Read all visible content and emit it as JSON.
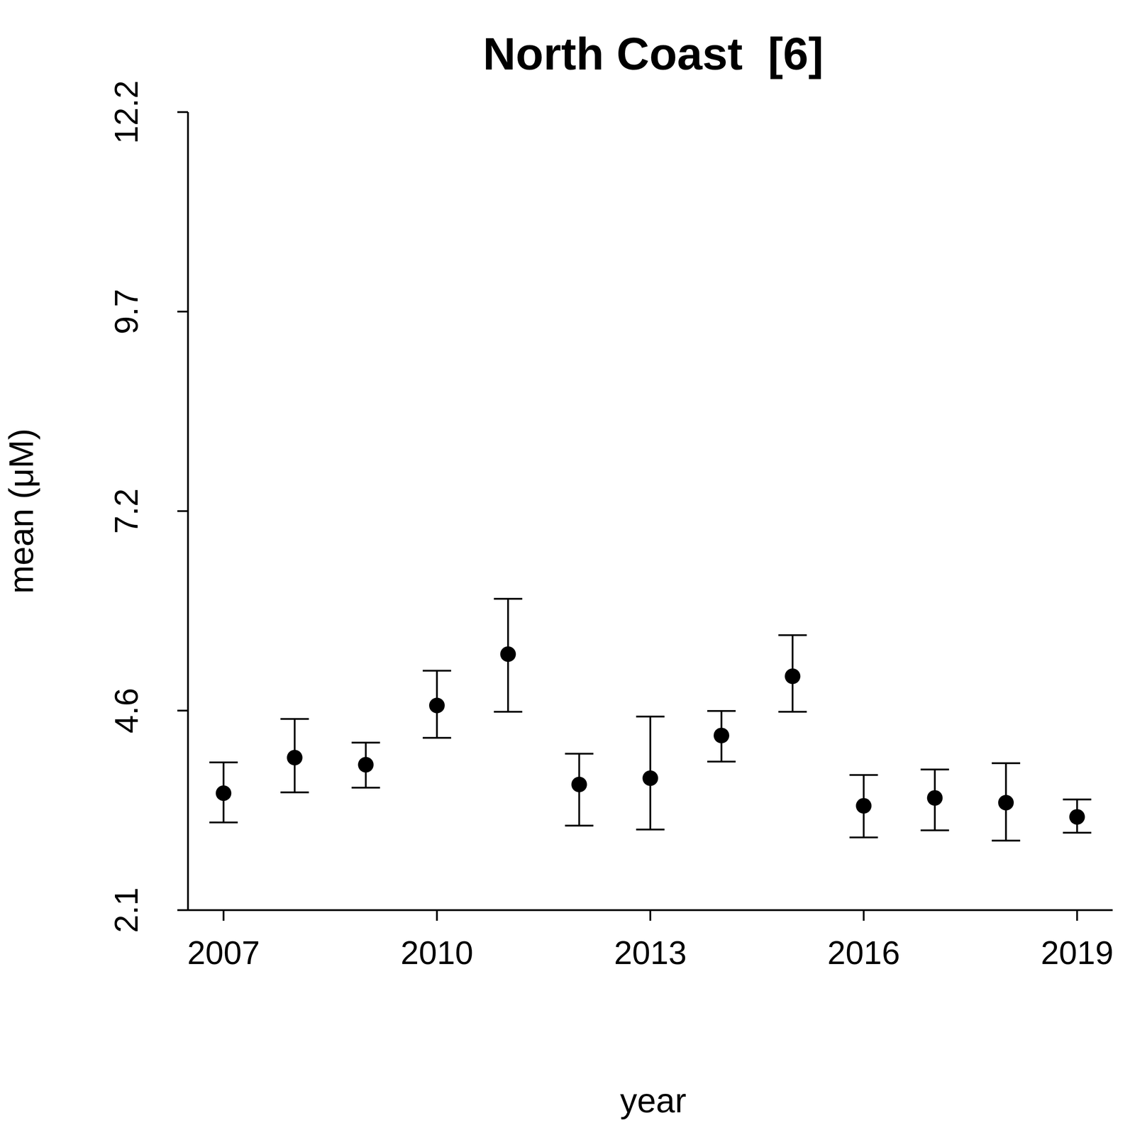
{
  "chart_data": {
    "type": "scatter",
    "title": "North Coast  [6]",
    "x_label": "year",
    "y_label": "mean (μM)",
    "x": [
      2007,
      2008,
      2009,
      2010,
      2011,
      2012,
      2013,
      2014,
      2015,
      2016,
      2017,
      2018,
      2019
    ],
    "values": [
      3.58,
      4.03,
      3.94,
      4.69,
      5.34,
      3.69,
      3.77,
      4.31,
      5.06,
      3.42,
      3.52,
      3.46,
      3.28
    ],
    "lower": [
      3.21,
      3.59,
      3.65,
      4.28,
      4.61,
      3.17,
      3.12,
      3.98,
      4.61,
      3.02,
      3.11,
      2.98,
      3.08
    ],
    "upper": [
      3.97,
      4.52,
      4.22,
      5.13,
      6.04,
      4.08,
      4.55,
      4.62,
      5.58,
      3.81,
      3.88,
      3.96,
      3.5
    ],
    "color": "#000000",
    "marker": "circle",
    "grid": false,
    "xlim": [
      2006.5,
      2019.5
    ],
    "xticks": [
      2007,
      2010,
      2013,
      2016,
      2019
    ],
    "ylim": [
      2.1,
      12.2
    ],
    "yticks": [
      2.1,
      {
        "value": 4.625,
        "label": "4.6"
      },
      {
        "value": 7.15,
        "label": "7.2"
      },
      {
        "value": 9.675,
        "label": "9.7"
      },
      12.2
    ]
  }
}
